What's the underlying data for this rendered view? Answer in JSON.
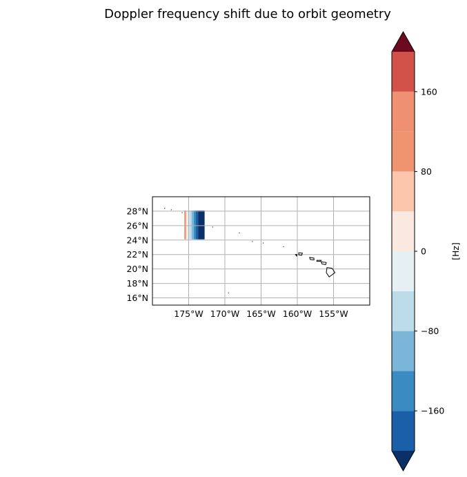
{
  "chart_data": {
    "type": "heatmap",
    "title": "Doppler frequency shift due to orbit geometry",
    "map": {
      "projection": "PlateCarree",
      "lon_range": [
        -180,
        -150
      ],
      "lat_range": [
        15,
        30
      ],
      "grid": true,
      "coastlines": true,
      "x_ticks": [
        {
          "value": -175,
          "label": "175°W"
        },
        {
          "value": -170,
          "label": "170°W"
        },
        {
          "value": -165,
          "label": "165°W"
        },
        {
          "value": -160,
          "label": "160°W"
        },
        {
          "value": -155,
          "label": "155°W"
        }
      ],
      "y_ticks": [
        {
          "value": 16,
          "label": "16°N"
        },
        {
          "value": 18,
          "label": "18°N"
        },
        {
          "value": 20,
          "label": "20°N"
        },
        {
          "value": 22,
          "label": "22°N"
        },
        {
          "value": 24,
          "label": "24°N"
        },
        {
          "value": 26,
          "label": "26°N"
        },
        {
          "value": 28,
          "label": "28°N"
        }
      ],
      "swath": {
        "lat_range": [
          24.1,
          28.1
        ],
        "columns": [
          {
            "lon": [
              -175.6,
              -175.35
            ],
            "value": 100
          },
          {
            "lon": [
              -175.35,
              -175.2
            ],
            "value": 20
          },
          {
            "lon": [
              -175.2,
              -174.9
            ],
            "value": -20
          },
          {
            "lon": [
              -174.9,
              -174.6
            ],
            "value": -60
          },
          {
            "lon": [
              -174.6,
              -174.3
            ],
            "value": -100
          },
          {
            "lon": [
              -174.3,
              -174.0
            ],
            "value": -140
          },
          {
            "lon": [
              -174.0,
              -173.7
            ],
            "value": -180
          },
          {
            "lon": [
              -173.7,
              -172.8
            ],
            "value": -220
          }
        ]
      },
      "islands": [
        {
          "name": "Hawaii",
          "points": [
            [
              -155.9,
              20.2
            ],
            [
              -155.2,
              20.1
            ],
            [
              -154.8,
              19.5
            ],
            [
              -155.6,
              18.9
            ],
            [
              -156.0,
              19.5
            ]
          ]
        },
        {
          "name": "Maui",
          "points": [
            [
              -156.7,
              21.0
            ],
            [
              -156.0,
              20.9
            ],
            [
              -156.1,
              20.6
            ],
            [
              -156.6,
              20.7
            ]
          ]
        },
        {
          "name": "Molokai",
          "points": [
            [
              -157.3,
              21.2
            ],
            [
              -156.7,
              21.2
            ],
            [
              -156.8,
              21.05
            ],
            [
              -157.3,
              21.05
            ]
          ]
        },
        {
          "name": "Oahu",
          "points": [
            [
              -158.3,
              21.6
            ],
            [
              -157.7,
              21.5
            ],
            [
              -157.7,
              21.25
            ],
            [
              -158.2,
              21.3
            ]
          ]
        },
        {
          "name": "Kauai",
          "points": [
            [
              -159.8,
              22.25
            ],
            [
              -159.3,
              22.2
            ],
            [
              -159.4,
              21.9
            ],
            [
              -159.8,
              21.95
            ]
          ]
        },
        {
          "name": "Niihau",
          "points": [
            [
              -160.25,
              22.0
            ],
            [
              -160.05,
              22.0
            ],
            [
              -160.1,
              21.8
            ]
          ]
        }
      ],
      "atolls": [
        [
          -178.3,
          28.4
        ],
        [
          -177.4,
          28.2
        ],
        [
          -175.9,
          27.8
        ],
        [
          -171.7,
          25.8
        ],
        [
          -168.0,
          25.0
        ],
        [
          -166.2,
          23.8
        ],
        [
          -164.7,
          23.6
        ],
        [
          -161.9,
          23.1
        ],
        [
          -169.5,
          16.7
        ]
      ]
    },
    "colorbar": {
      "label": "[Hz]",
      "vmin": -200,
      "vmax": 200,
      "levels": [
        -200,
        -160,
        -120,
        -80,
        -40,
        0,
        40,
        80,
        120,
        160,
        200
      ],
      "colors": [
        "#1a5fa8",
        "#3a8bc2",
        "#7bb6d9",
        "#bcdcea",
        "#e6eff4",
        "#fbe8de",
        "#fbc6ac",
        "#ef946f",
        "#ee9071",
        "#d2524a"
      ],
      "under_color": "#0a3067",
      "over_color": "#6e0a20",
      "ticks": [
        {
          "value": -160,
          "label": "−160"
        },
        {
          "value": -80,
          "label": "−80"
        },
        {
          "value": 0,
          "label": "0"
        },
        {
          "value": 80,
          "label": "80"
        },
        {
          "value": 160,
          "label": "160"
        }
      ]
    }
  }
}
